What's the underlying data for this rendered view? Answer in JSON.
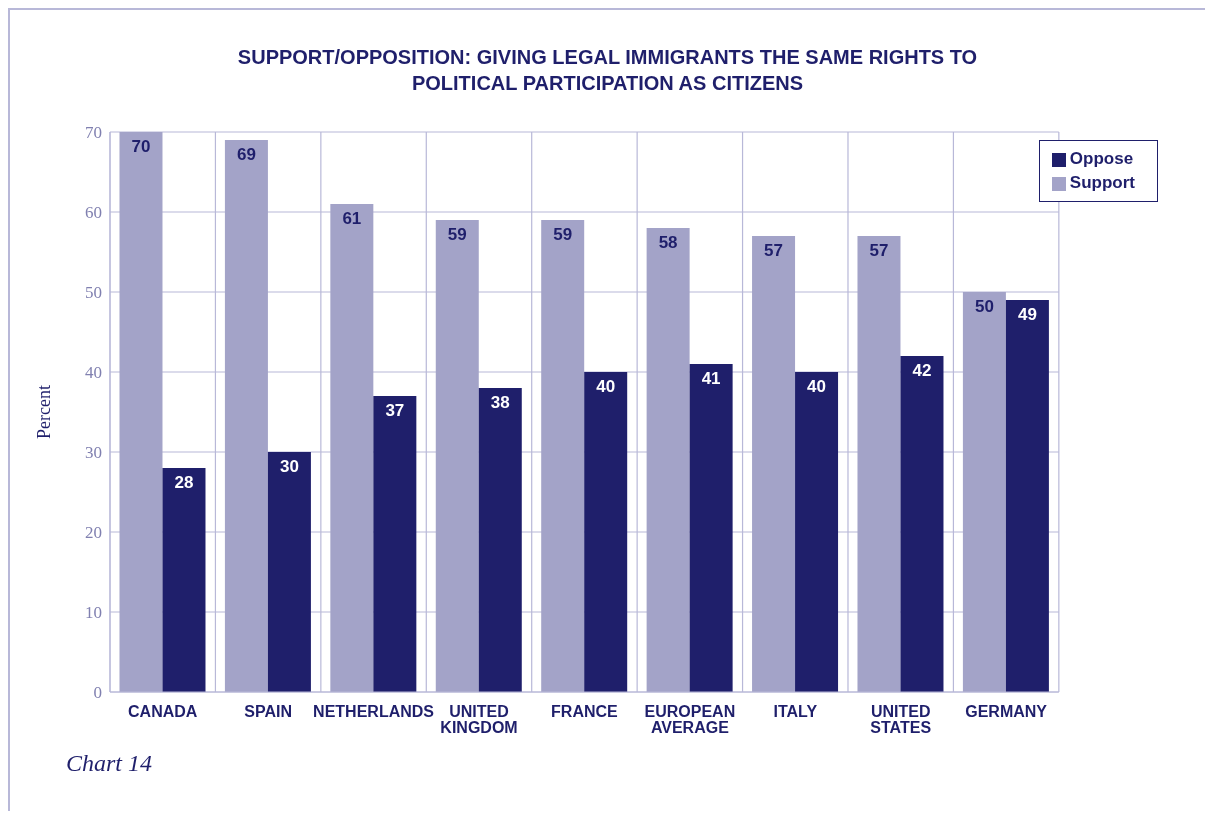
{
  "chart_data": {
    "type": "bar",
    "title": "SUPPORT/OPPOSITION: GIVING LEGAL IMMIGRANTS THE SAME RIGHTS TO POLITICAL PARTICIPATION AS CITIZENS",
    "ylabel": "Percent",
    "annotations": [
      "Chart 14"
    ],
    "categories": [
      "CANADA",
      "SPAIN",
      "NETHERLANDS",
      "UNITED KINGDOM",
      "FRANCE",
      "EUROPEAN AVERAGE",
      "ITALY",
      "UNITED STATES",
      "GERMANY"
    ],
    "series": [
      {
        "name": "Support",
        "color": "#a3a3c8",
        "values": [
          70,
          69,
          61,
          59,
          59,
          58,
          57,
          57,
          50
        ]
      },
      {
        "name": "Oppose",
        "color": "#1f1f6b",
        "values": [
          28,
          30,
          37,
          38,
          40,
          41,
          40,
          42,
          49
        ]
      }
    ],
    "ylim": [
      0,
      70
    ],
    "yticks": [
      0,
      10,
      20,
      30,
      40,
      50,
      60,
      70
    ],
    "grid": true,
    "legend": "top right",
    "data_labels": true
  }
}
